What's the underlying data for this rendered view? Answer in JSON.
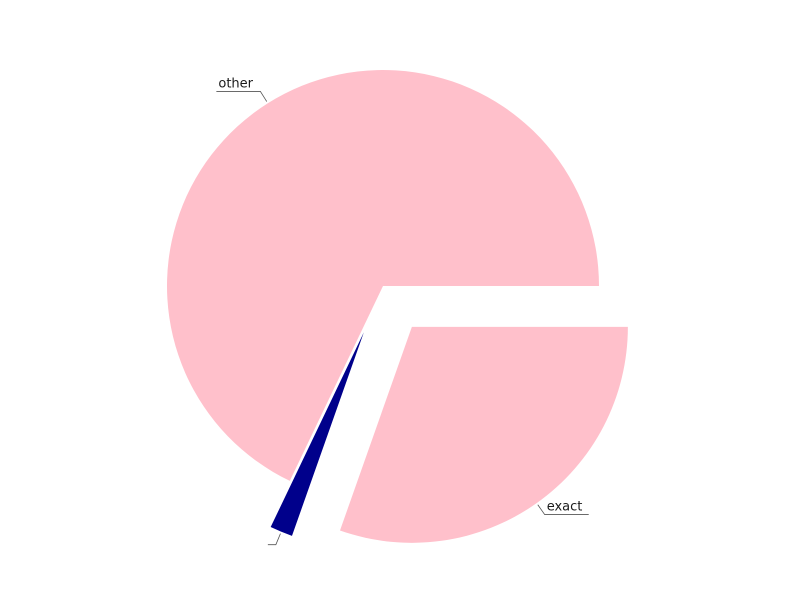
{
  "chart_data": {
    "type": "pie",
    "title": "",
    "slices": [
      {
        "label": "exact",
        "value": 30.4,
        "color": "#ffc0cb",
        "exploded": true
      },
      {
        "label": "",
        "value": 1.7,
        "color": "#00008b",
        "exploded": true
      },
      {
        "label": "other",
        "value": 67.9,
        "color": "#ffc0cb",
        "exploded": false
      }
    ],
    "start_angle_deg": 0,
    "direction": "clockwise",
    "legend": "none"
  }
}
